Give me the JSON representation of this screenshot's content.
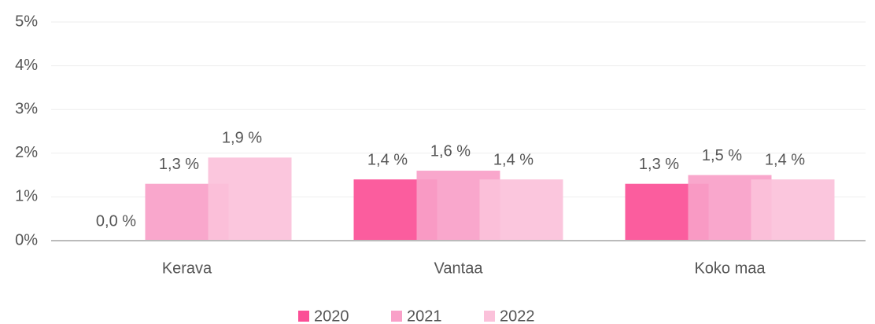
{
  "chart_data": {
    "type": "bar",
    "categories": [
      "Kerava",
      "Vantaa",
      "Koko maa"
    ],
    "series": [
      {
        "name": "2020",
        "color": "#fb4f96",
        "values": [
          0.0,
          1.4,
          1.3
        ],
        "value_labels": [
          "0,0 %",
          "1,4 %",
          "1,3 %"
        ]
      },
      {
        "name": "2021",
        "color": "#f9a0c8",
        "values": [
          1.3,
          1.6,
          1.5
        ],
        "value_labels": [
          "1,3 %",
          "1,6 %",
          "1,5 %"
        ]
      },
      {
        "name": "2022",
        "color": "#fbc1da",
        "values": [
          1.9,
          1.4,
          1.4
        ],
        "value_labels": [
          "1,9 %",
          "1,4 %",
          "1,4 %"
        ]
      }
    ],
    "ylim": [
      0,
      5
    ],
    "yticks": [
      {
        "value": 0,
        "label": "0%"
      },
      {
        "value": 1,
        "label": "1%"
      },
      {
        "value": 2,
        "label": "2%"
      },
      {
        "value": 3,
        "label": "3%"
      },
      {
        "value": 4,
        "label": "4%"
      },
      {
        "value": 5,
        "label": "5%"
      }
    ],
    "grid": true,
    "legend": "bottom"
  }
}
